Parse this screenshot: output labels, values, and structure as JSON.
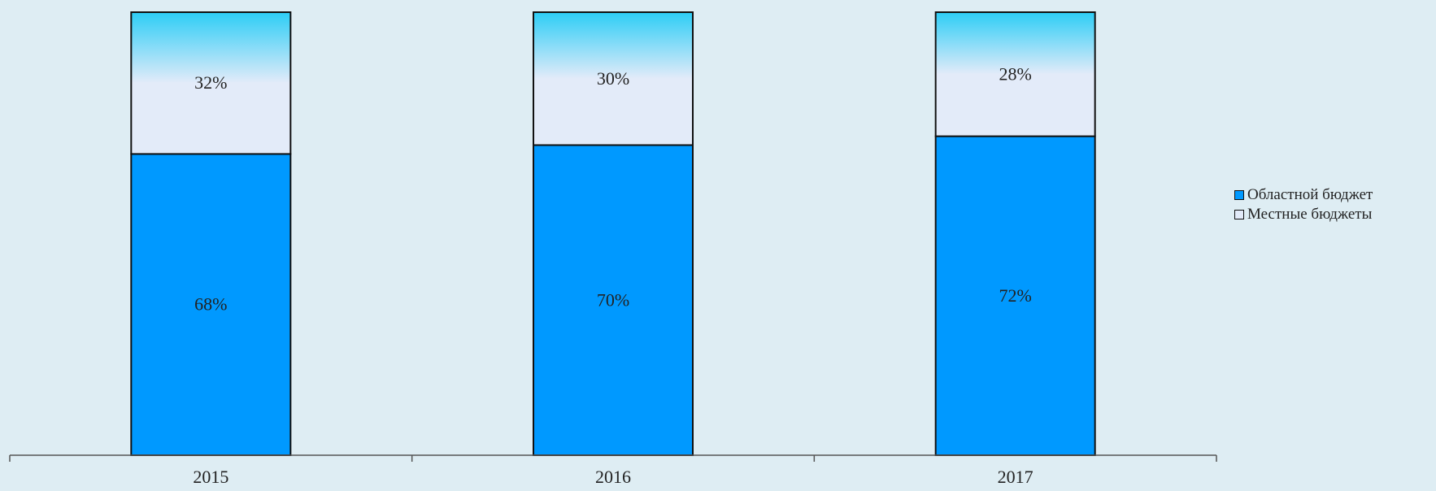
{
  "chart_data": {
    "type": "bar",
    "stacked": true,
    "percent": true,
    "categories": [
      "2015",
      "2016",
      "2017"
    ],
    "series": [
      {
        "name": "Областной бюджет",
        "values": [
          68,
          70,
          72
        ],
        "labels": [
          "68%",
          "70%",
          "72%"
        ],
        "color": "#0099ff"
      },
      {
        "name": "Местные бюджеты",
        "values": [
          32,
          30,
          28
        ],
        "labels": [
          "32%",
          "30%",
          "28%"
        ],
        "color": "#e3ebf9"
      }
    ],
    "title": "",
    "xlabel": "",
    "ylabel": "",
    "ylim": [
      0,
      100
    ],
    "grid": false,
    "legend_position": "right",
    "colors": {
      "background": "#deedf3",
      "top_gradient": "#2dcdf6",
      "border": "#111111"
    }
  }
}
